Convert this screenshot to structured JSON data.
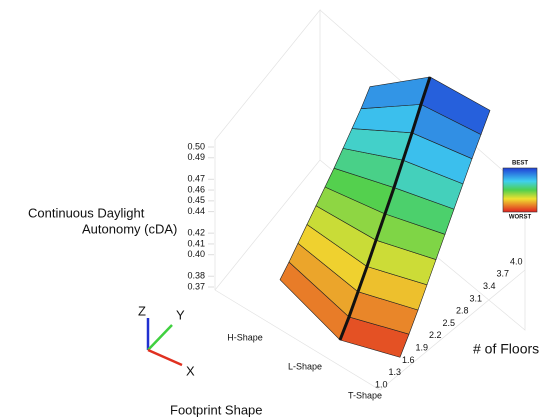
{
  "chart_data": {
    "type": "surface",
    "zlabel": [
      "Continuous Daylight",
      "Autonomy  (cDA)"
    ],
    "ylabel": "# of Floors",
    "xlabel": "Footprint Shape",
    "categories": [
      "H-Shape",
      "L-Shape",
      "T-Shape"
    ],
    "y": [
      1.0,
      1.3,
      1.6,
      1.9,
      2.2,
      2.5,
      2.8,
      3.1,
      3.4,
      3.7,
      4.0
    ],
    "values": [
      [
        0.4,
        0.405,
        0.411,
        0.417,
        0.423,
        0.429,
        0.435,
        0.442,
        0.449,
        0.456,
        0.465
      ],
      [
        0.37,
        0.38,
        0.392,
        0.404,
        0.417,
        0.43,
        0.443,
        0.457,
        0.471,
        0.486,
        0.5
      ],
      [
        0.38,
        0.39,
        0.401,
        0.413,
        0.425,
        0.437,
        0.449,
        0.461,
        0.473,
        0.484,
        0.495
      ]
    ],
    "zlim": [
      0.37,
      0.5
    ],
    "zticks": [
      0.37,
      0.38,
      {
        "value": 0.4,
        "label": "0.40"
      },
      0.41,
      0.42,
      0.44,
      0.45,
      0.46,
      0.47,
      0.49,
      {
        "value": 0.5,
        "label": "0.50"
      }
    ],
    "yticks": [
      {
        "value": 1.0,
        "label": "1.0"
      },
      1.3,
      1.6,
      1.9,
      2.2,
      2.5,
      2.8,
      3.1,
      3.4,
      3.7,
      {
        "value": 4.0,
        "label": "4.0"
      }
    ],
    "colorbar": {
      "best": "BEST",
      "worst": "WORST"
    },
    "triad": [
      "X",
      "Y",
      "Z"
    ]
  }
}
